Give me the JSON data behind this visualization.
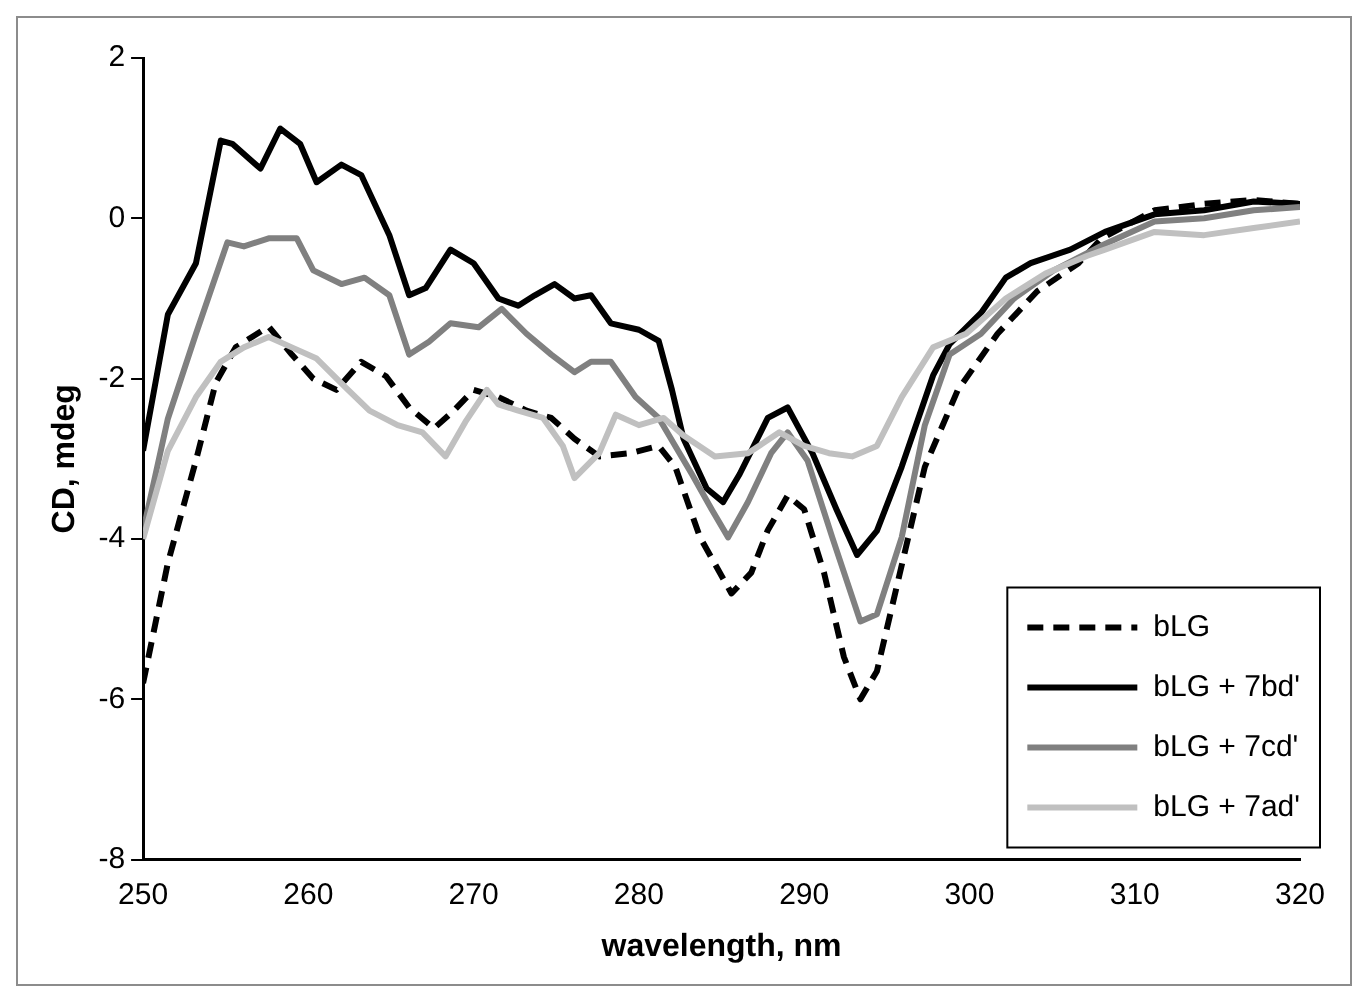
{
  "chart_data": {
    "type": "line",
    "xlabel": "wavelength, nm",
    "ylabel": "CD, mdeg",
    "xlim": [
      250,
      320
    ],
    "xticks": [
      250,
      260,
      270,
      280,
      290,
      300,
      310,
      320
    ],
    "ylim": [
      -8,
      2
    ],
    "yticks": [
      -8,
      -6,
      -4,
      -2,
      0,
      2
    ],
    "grid": false,
    "legend": "bottom right",
    "marker": "none",
    "series": [
      {
        "name": "bLG",
        "color": "#000000",
        "line_style": "dashed",
        "x": [
          250,
          251.5,
          253.2,
          254.4,
          255.6,
          257.6,
          259,
          260.3,
          261.7,
          263.2,
          264.7,
          266.1,
          267.6,
          268.8,
          270,
          271.5,
          273.2,
          274.7,
          276.1,
          277.6,
          279.5,
          281.2,
          282.2,
          283.7,
          285.6,
          286.8,
          287.8,
          289,
          290,
          291.2,
          292.4,
          293.4,
          294.4,
          295.9,
          297.3,
          299.3,
          301.7,
          304.1,
          306.6,
          308,
          311.2,
          314.2,
          317.2,
          320
        ],
        "values": [
          -5.8,
          -4.3,
          -3.02,
          -2.05,
          -1.61,
          -1.35,
          -1.7,
          -2.0,
          -2.14,
          -1.79,
          -1.97,
          -2.36,
          -2.62,
          -2.4,
          -2.14,
          -2.23,
          -2.4,
          -2.49,
          -2.75,
          -2.97,
          -2.93,
          -2.84,
          -3.1,
          -3.98,
          -4.68,
          -4.42,
          -3.89,
          -3.46,
          -3.63,
          -4.42,
          -5.47,
          -6.0,
          -5.65,
          -4.33,
          -3.1,
          -2.14,
          -1.44,
          -0.91,
          -0.56,
          -0.25,
          0.1,
          0.18,
          0.23,
          0.18
        ]
      },
      {
        "name": "bLG + 7bd'",
        "color": "#000000",
        "line_style": "solid",
        "x": [
          250,
          251.5,
          253.2,
          254.7,
          255.4,
          257.1,
          258.3,
          259.5,
          260.5,
          262,
          263.2,
          264.9,
          266.1,
          267.1,
          268.6,
          270,
          271.5,
          272.7,
          273.7,
          274.9,
          276.1,
          277.1,
          278.3,
          280,
          281.2,
          282,
          282.7,
          284.1,
          285.1,
          286.1,
          287.8,
          289,
          290.5,
          291.95,
          293.2,
          294.4,
          295.9,
          297.8,
          298.8,
          300.7,
          302.2,
          303.7,
          306.1,
          308.2,
          311.2,
          314.2,
          317.2,
          320
        ],
        "values": [
          -2.9,
          -1.2,
          -0.56,
          0.97,
          0.93,
          0.62,
          1.12,
          0.93,
          0.45,
          0.67,
          0.54,
          -0.21,
          -0.96,
          -0.87,
          -0.39,
          -0.56,
          -1.0,
          -1.09,
          -0.96,
          -0.82,
          -1.0,
          -0.96,
          -1.31,
          -1.39,
          -1.53,
          -2.14,
          -2.75,
          -3.37,
          -3.54,
          -3.19,
          -2.49,
          -2.36,
          -2.93,
          -3.63,
          -4.2,
          -3.9,
          -3.1,
          -1.96,
          -1.57,
          -1.18,
          -0.74,
          -0.56,
          -0.39,
          -0.17,
          0.05,
          0.1,
          0.21,
          0.18
        ]
      },
      {
        "name": "bLG + 7cd'",
        "color": "#808080",
        "line_style": "solid",
        "x": [
          250,
          251.5,
          253.2,
          255.1,
          256.1,
          257.6,
          259.3,
          260.3,
          262,
          263.4,
          264.9,
          266.1,
          267.3,
          268.6,
          270.3,
          271.7,
          273.2,
          274.7,
          276.1,
          277.1,
          278.3,
          279.8,
          281.2,
          283.2,
          284.4,
          285.4,
          286.6,
          288,
          289,
          290.2,
          291.7,
          293.4,
          294.4,
          295.9,
          297.3,
          298.8,
          300.7,
          302.7,
          305.1,
          308,
          311.2,
          314.2,
          317.2,
          320
        ],
        "values": [
          -3.9,
          -2.5,
          -1.44,
          -0.3,
          -0.35,
          -0.25,
          -0.25,
          -0.65,
          -0.82,
          -0.74,
          -0.96,
          -1.7,
          -1.54,
          -1.31,
          -1.36,
          -1.13,
          -1.44,
          -1.7,
          -1.92,
          -1.79,
          -1.79,
          -2.23,
          -2.49,
          -3.19,
          -3.63,
          -3.98,
          -3.54,
          -2.93,
          -2.67,
          -3.02,
          -3.98,
          -5.03,
          -4.94,
          -3.98,
          -2.58,
          -1.7,
          -1.44,
          -1.0,
          -0.65,
          -0.34,
          -0.04,
          0,
          0.1,
          0.14
        ]
      },
      {
        "name": "bLG + 7ad'",
        "color": "#c0c0c0",
        "line_style": "solid",
        "x": [
          250,
          251.5,
          253.2,
          254.7,
          256.1,
          257.6,
          259,
          260.5,
          262.2,
          263.7,
          265.4,
          266.9,
          268.3,
          269.5,
          270.8,
          271.5,
          272.7,
          274.2,
          275.4,
          276.1,
          277.6,
          278.6,
          280,
          281.5,
          282.7,
          284.6,
          286.6,
          288.5,
          290,
          291.5,
          292.9,
          294.4,
          295.9,
          297.8,
          299.8,
          302.2,
          304.6,
          307.1,
          308.2,
          311.2,
          314.2,
          317.2,
          320
        ],
        "values": [
          -4.0,
          -2.9,
          -2.23,
          -1.79,
          -1.61,
          -1.48,
          -1.61,
          -1.75,
          -2.1,
          -2.4,
          -2.58,
          -2.67,
          -2.97,
          -2.54,
          -2.14,
          -2.32,
          -2.4,
          -2.49,
          -2.84,
          -3.24,
          -2.93,
          -2.45,
          -2.58,
          -2.49,
          -2.71,
          -2.97,
          -2.93,
          -2.67,
          -2.84,
          -2.93,
          -2.97,
          -2.84,
          -2.23,
          -1.61,
          -1.44,
          -1.0,
          -0.69,
          -0.47,
          -0.39,
          -0.17,
          -0.21,
          -0.12,
          -0.04
        ]
      }
    ]
  }
}
